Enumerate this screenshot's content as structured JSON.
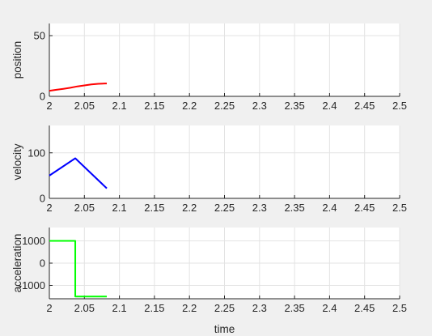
{
  "chart_data": [
    {
      "type": "line",
      "ylabel": "position",
      "xlim": [
        2,
        2.5
      ],
      "ylim": [
        0,
        60
      ],
      "xticks": [
        "2",
        "2.05",
        "2.1",
        "2.15",
        "2.2",
        "2.25",
        "2.3",
        "2.35",
        "2.4",
        "2.45",
        "2.5"
      ],
      "yticks": [
        "0",
        "50"
      ],
      "ytick_values": [
        0,
        50
      ],
      "grid": true,
      "color": "#ff0000",
      "series": [
        {
          "x": [
            2.0,
            2.01,
            2.02,
            2.03,
            2.04,
            2.05,
            2.06,
            2.07,
            2.08,
            2.082
          ],
          "y": [
            4.6,
            5.4,
            6.2,
            7.1,
            8.2,
            9.0,
            9.8,
            10.3,
            10.6,
            10.6
          ]
        }
      ]
    },
    {
      "type": "line",
      "ylabel": "velocity",
      "xlim": [
        2,
        2.5
      ],
      "ylim": [
        0,
        160
      ],
      "xticks": [
        "2",
        "2.05",
        "2.1",
        "2.15",
        "2.2",
        "2.25",
        "2.3",
        "2.35",
        "2.4",
        "2.45",
        "2.5"
      ],
      "yticks": [
        "0",
        "100"
      ],
      "ytick_values": [
        0,
        100
      ],
      "grid": true,
      "color": "#0000ff",
      "series": [
        {
          "x": [
            2.0,
            2.037,
            2.082
          ],
          "y": [
            50,
            88,
            22
          ]
        }
      ]
    },
    {
      "type": "line",
      "ylabel": "acceleration",
      "xlabel": "time",
      "xlim": [
        2,
        2.5
      ],
      "ylim": [
        -1600,
        1600
      ],
      "xticks": [
        "2",
        "2.05",
        "2.1",
        "2.15",
        "2.2",
        "2.25",
        "2.3",
        "2.35",
        "2.4",
        "2.45",
        "2.5"
      ],
      "yticks": [
        "-1000",
        "0",
        "1000"
      ],
      "ytick_values": [
        -1000,
        0,
        1000
      ],
      "grid": true,
      "color": "#00ff00",
      "series": [
        {
          "x": [
            2.0,
            2.037,
            2.037,
            2.082
          ],
          "y": [
            1000,
            1000,
            -1500,
            -1500
          ]
        }
      ]
    }
  ]
}
